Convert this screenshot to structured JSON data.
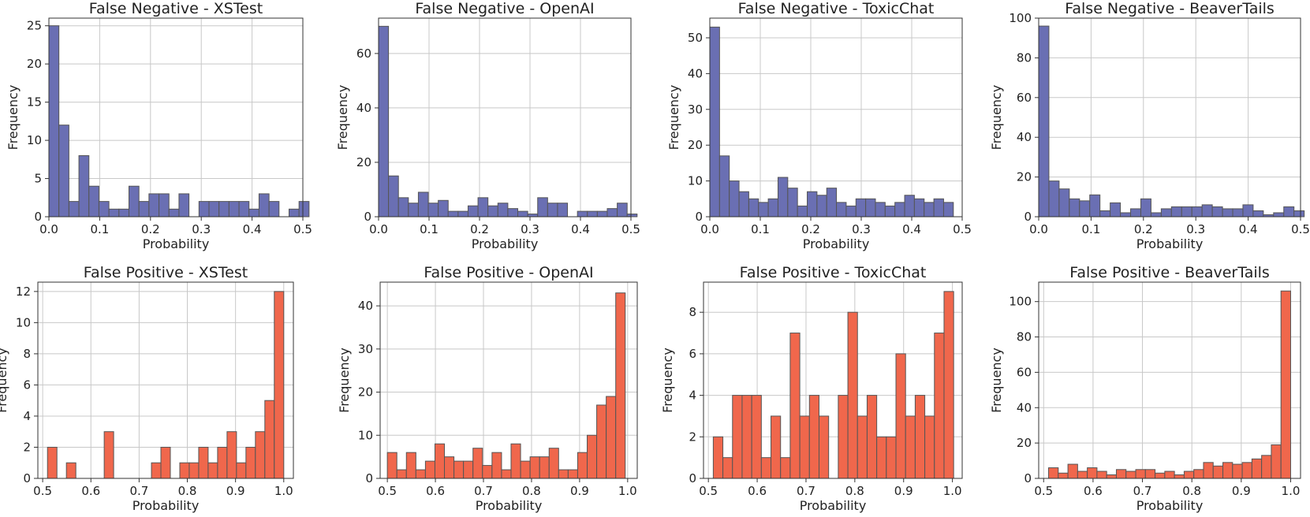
{
  "chart_data": [
    {
      "type": "bar",
      "title": "False Negative - XSTest",
      "xlabel": "Probability",
      "ylabel": "Frequency",
      "color": "#6a6fb3",
      "xlim": [
        0,
        0.5
      ],
      "ylim": [
        0,
        26
      ],
      "xticks": [
        0.0,
        0.1,
        0.2,
        0.3,
        0.4,
        0.5
      ],
      "xtick_labels": [
        "0.0",
        "0.1",
        "0.2",
        "0.3",
        "0.4",
        "0.5"
      ],
      "yticks": [
        0,
        5,
        10,
        15,
        20,
        25
      ],
      "ytick_labels": [
        "0",
        "5",
        "10",
        "15",
        "20",
        "25"
      ],
      "bin_start": 0.0,
      "bin_width": 0.0197,
      "values": [
        25,
        12,
        2,
        8,
        4,
        2,
        1,
        1,
        4,
        2,
        3,
        3,
        1,
        3,
        0,
        2,
        2,
        2,
        2,
        2,
        1,
        3,
        2,
        0,
        1,
        2
      ]
    },
    {
      "type": "bar",
      "title": "False Negative - OpenAI",
      "xlabel": "Probability",
      "ylabel": "Frequency",
      "color": "#6a6fb3",
      "xlim": [
        0,
        0.5
      ],
      "ylim": [
        0,
        73
      ],
      "xticks": [
        0.0,
        0.1,
        0.2,
        0.3,
        0.4,
        0.5
      ],
      "xtick_labels": [
        "0.0",
        "0.1",
        "0.2",
        "0.3",
        "0.4",
        "0.5"
      ],
      "yticks": [
        0,
        20,
        40,
        60
      ],
      "ytick_labels": [
        "0",
        "20",
        "40",
        "60"
      ],
      "bin_start": 0.0,
      "bin_width": 0.0197,
      "values": [
        70,
        15,
        7,
        5,
        9,
        5,
        6,
        2,
        2,
        4,
        7,
        4,
        5,
        3,
        2,
        1,
        7,
        5,
        5,
        0,
        2,
        2,
        2,
        3,
        5,
        1
      ]
    },
    {
      "type": "bar",
      "title": "False Negative - ToxicChat",
      "xlabel": "Probability",
      "ylabel": "Frequency",
      "color": "#6a6fb3",
      "xlim": [
        0,
        0.5
      ],
      "ylim": [
        0,
        55.5
      ],
      "xticks": [
        0.0,
        0.1,
        0.2,
        0.3,
        0.4,
        0.5
      ],
      "xtick_labels": [
        "0.0",
        "0.1",
        "0.2",
        "0.3",
        "0.4",
        "0.5"
      ],
      "yticks": [
        0,
        10,
        20,
        30,
        40,
        50
      ],
      "ytick_labels": [
        "0",
        "10",
        "20",
        "30",
        "40",
        "50"
      ],
      "bin_start": 0.0,
      "bin_width": 0.0193,
      "values": [
        53,
        17,
        10,
        7,
        5,
        4,
        5,
        11,
        8,
        3,
        7,
        6,
        8,
        4,
        3,
        5,
        5,
        4,
        3,
        4,
        6,
        5,
        4,
        5,
        4
      ]
    },
    {
      "type": "bar",
      "title": "False Negative - BeaverTails",
      "xlabel": "Probability",
      "ylabel": "Frequency",
      "color": "#6a6fb3",
      "xlim": [
        0,
        0.5
      ],
      "ylim": [
        0,
        100
      ],
      "xticks": [
        0.0,
        0.1,
        0.2,
        0.3,
        0.4,
        0.5
      ],
      "xtick_labels": [
        "0.0",
        "0.1",
        "0.2",
        "0.3",
        "0.4",
        "0.5"
      ],
      "yticks": [
        0,
        20,
        40,
        60,
        80,
        100
      ],
      "ytick_labels": [
        "0",
        "20",
        "40",
        "60",
        "80",
        "100"
      ],
      "bin_start": 0.0,
      "bin_width": 0.0195,
      "values": [
        96,
        18,
        14,
        9,
        8,
        11,
        3,
        7,
        2,
        4,
        9,
        2,
        4,
        5,
        5,
        5,
        6,
        5,
        4,
        4,
        6,
        3,
        1,
        2,
        5,
        3
      ]
    },
    {
      "type": "bar",
      "title": "False Positive - XSTest",
      "xlabel": "Probability",
      "ylabel": "Frequency",
      "color": "#f0674c",
      "xlim": [
        0.49,
        1.02
      ],
      "ylim": [
        0,
        12.6
      ],
      "xticks": [
        0.5,
        0.6,
        0.7,
        0.8,
        0.9,
        1.0
      ],
      "xtick_labels": [
        "0.5",
        "0.6",
        "0.7",
        "0.8",
        "0.9",
        "1.0"
      ],
      "yticks": [
        0,
        2,
        4,
        6,
        8,
        10,
        12
      ],
      "ytick_labels": [
        "0",
        "2",
        "4",
        "6",
        "8",
        "10",
        "12"
      ],
      "bin_start": 0.51,
      "bin_width": 0.0196,
      "values": [
        2,
        0,
        1,
        0,
        0,
        0,
        3,
        0,
        0,
        0,
        0,
        1,
        2,
        0,
        1,
        1,
        2,
        1,
        2,
        3,
        1,
        2,
        3,
        5,
        12
      ]
    },
    {
      "type": "bar",
      "title": "False Positive - OpenAI",
      "xlabel": "Probability",
      "ylabel": "Frequency",
      "color": "#f0674c",
      "xlim": [
        0.485,
        1.02
      ],
      "ylim": [
        0,
        45.5
      ],
      "xticks": [
        0.5,
        0.6,
        0.7,
        0.8,
        0.9,
        1.0
      ],
      "xtick_labels": [
        "0.5",
        "0.6",
        "0.7",
        "0.8",
        "0.9",
        "1.0"
      ],
      "yticks": [
        0,
        10,
        20,
        30,
        40
      ],
      "ytick_labels": [
        "0",
        "10",
        "20",
        "30",
        "40"
      ],
      "bin_start": 0.5,
      "bin_width": 0.0198,
      "values": [
        6,
        2,
        6,
        2,
        4,
        8,
        5,
        4,
        4,
        7,
        3,
        6,
        2,
        8,
        4,
        5,
        5,
        7,
        2,
        2,
        6,
        10,
        17,
        19,
        43
      ]
    },
    {
      "type": "bar",
      "title": "False Positive - ToxicChat",
      "xlabel": "Probability",
      "ylabel": "Frequency",
      "color": "#f0674c",
      "xlim": [
        0.49,
        1.02
      ],
      "ylim": [
        0,
        9.45
      ],
      "xticks": [
        0.5,
        0.6,
        0.7,
        0.8,
        0.9,
        1.0
      ],
      "xtick_labels": [
        "0.5",
        "0.6",
        "0.7",
        "0.8",
        "0.9",
        "1.0"
      ],
      "yticks": [
        0,
        2,
        4,
        6,
        8
      ],
      "ytick_labels": [
        "0",
        "2",
        "4",
        "6",
        "8"
      ],
      "bin_start": 0.51,
      "bin_width": 0.0197,
      "values": [
        2,
        1,
        4,
        4,
        4,
        1,
        3,
        1,
        7,
        3,
        4,
        3,
        0,
        4,
        8,
        3,
        4,
        2,
        2,
        6,
        3,
        4,
        3,
        7,
        9
      ]
    },
    {
      "type": "bar",
      "title": "False Positive - BeaverTails",
      "xlabel": "Probability",
      "ylabel": "Frequency",
      "color": "#f0674c",
      "xlim": [
        0.49,
        1.02
      ],
      "ylim": [
        0,
        111
      ],
      "xticks": [
        0.5,
        0.6,
        0.7,
        0.8,
        0.9,
        1.0
      ],
      "xtick_labels": [
        "0.5",
        "0.6",
        "0.7",
        "0.8",
        "0.9",
        "1.0"
      ],
      "yticks": [
        0,
        20,
        40,
        60,
        80,
        100
      ],
      "ytick_labels": [
        "0",
        "20",
        "40",
        "60",
        "80",
        "100"
      ],
      "bin_start": 0.51,
      "bin_width": 0.0196,
      "values": [
        6,
        3,
        8,
        4,
        6,
        4,
        2,
        5,
        4,
        5,
        5,
        3,
        4,
        2,
        4,
        5,
        9,
        7,
        9,
        8,
        9,
        11,
        13,
        19,
        106
      ]
    }
  ]
}
